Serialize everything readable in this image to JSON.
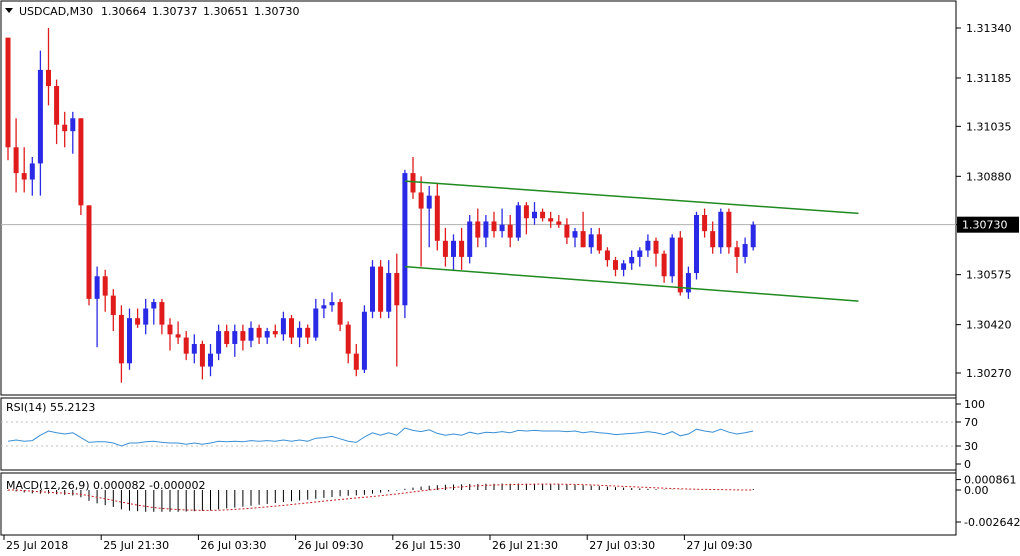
{
  "header": {
    "symbol": "USDCAD,M30",
    "open": "1.30664",
    "high": "1.30737",
    "low": "1.30651",
    "close": "1.30730"
  },
  "colors": {
    "bull": "#2a2ae6",
    "bear": "#e01b1b",
    "channel": "#1f8a1f",
    "rsi": "#3a8fd6",
    "macd_hist": "#000000",
    "macd_signal": "#c8201f",
    "bid_line": "#b0b0b0"
  },
  "chart_data": [
    {
      "type": "candlestick",
      "title": "USDCAD,M30",
      "yticks": [
        "1.31340",
        "1.31185",
        "1.31035",
        "1.30880",
        "1.30730",
        "1.30575",
        "1.30420",
        "1.30270"
      ],
      "ytick_values": [
        1.3134,
        1.31185,
        1.31035,
        1.3088,
        1.3073,
        1.30575,
        1.3042,
        1.3027
      ],
      "ylim": [
        1.3024,
        1.3136
      ],
      "current_price": "1.30730",
      "xticks": [
        "25 Jul 2018",
        "25 Jul 21:30",
        "26 Jul 03:30",
        "26 Jul 09:30",
        "26 Jul 15:30",
        "26 Jul 21:30",
        "27 Jul 03:30",
        "27 Jul 09:30"
      ],
      "xtick_index": [
        0,
        12,
        24,
        36,
        48,
        60,
        72,
        84
      ],
      "candles": [
        [
          1.3131,
          1.3131,
          1.3093,
          1.3097
        ],
        [
          1.3097,
          1.3106,
          1.3083,
          1.3089
        ],
        [
          1.3089,
          1.3097,
          1.3083,
          1.3087
        ],
        [
          1.3087,
          1.3094,
          1.3082,
          1.3092
        ],
        [
          1.3092,
          1.3127,
          1.3082,
          1.3121
        ],
        [
          1.3121,
          1.3134,
          1.311,
          1.3116
        ],
        [
          1.3116,
          1.3118,
          1.3098,
          1.3104
        ],
        [
          1.3104,
          1.3108,
          1.3097,
          1.3102
        ],
        [
          1.3102,
          1.3108,
          1.3095,
          1.3106
        ],
        [
          1.3106,
          1.3106,
          1.3076,
          1.3079
        ],
        [
          1.3079,
          1.3079,
          1.3048,
          1.305
        ],
        [
          1.305,
          1.306,
          1.3035,
          1.3057
        ],
        [
          1.3057,
          1.3059,
          1.3046,
          1.3051
        ],
        [
          1.3051,
          1.3053,
          1.304,
          1.3045
        ],
        [
          1.3045,
          1.3048,
          1.3024,
          1.303
        ],
        [
          1.303,
          1.3047,
          1.3028,
          1.3044
        ],
        [
          1.3044,
          1.3047,
          1.3041,
          1.3042
        ],
        [
          1.3042,
          1.305,
          1.3039,
          1.3047
        ],
        [
          1.3047,
          1.305,
          1.3042,
          1.3049
        ],
        [
          1.3049,
          1.305,
          1.3039,
          1.3042
        ],
        [
          1.3042,
          1.3044,
          1.3034,
          1.3039
        ],
        [
          1.3039,
          1.3043,
          1.3036,
          1.3038
        ],
        [
          1.3038,
          1.304,
          1.3031,
          1.3033
        ],
        [
          1.3033,
          1.3039,
          1.303,
          1.3036
        ],
        [
          1.3036,
          1.3037,
          1.3025,
          1.3029
        ],
        [
          1.3029,
          1.3036,
          1.3026,
          1.3033
        ],
        [
          1.3033,
          1.3042,
          1.3031,
          1.304
        ],
        [
          1.304,
          1.3042,
          1.3035,
          1.3036
        ],
        [
          1.3036,
          1.3042,
          1.3032,
          1.304
        ],
        [
          1.304,
          1.3042,
          1.3034,
          1.3037
        ],
        [
          1.3037,
          1.3043,
          1.3035,
          1.3041
        ],
        [
          1.3041,
          1.3042,
          1.3036,
          1.3038
        ],
        [
          1.3038,
          1.3041,
          1.3036,
          1.304
        ],
        [
          1.304,
          1.3042,
          1.3038,
          1.3039
        ],
        [
          1.3039,
          1.3046,
          1.3037,
          1.3044
        ],
        [
          1.3044,
          1.3045,
          1.3036,
          1.3038
        ],
        [
          1.3038,
          1.3043,
          1.3035,
          1.3041
        ],
        [
          1.3041,
          1.3042,
          1.3036,
          1.3038
        ],
        [
          1.3038,
          1.305,
          1.3037,
          1.3047
        ],
        [
          1.3047,
          1.305,
          1.3044,
          1.3048
        ],
        [
          1.3048,
          1.3052,
          1.3046,
          1.3049
        ],
        [
          1.3049,
          1.305,
          1.304,
          1.3042
        ],
        [
          1.3042,
          1.3043,
          1.303,
          1.3033
        ],
        [
          1.3033,
          1.3036,
          1.3026,
          1.3028
        ],
        [
          1.3028,
          1.3048,
          1.3027,
          1.3046
        ],
        [
          1.3046,
          1.3062,
          1.3044,
          1.306
        ],
        [
          1.306,
          1.3062,
          1.3044,
          1.3046
        ],
        [
          1.3046,
          1.3062,
          1.3044,
          1.3058
        ],
        [
          1.3058,
          1.3064,
          1.3029,
          1.3048
        ],
        [
          1.3048,
          1.309,
          1.3044,
          1.3089
        ],
        [
          1.3089,
          1.3094,
          1.3081,
          1.3083
        ],
        [
          1.3083,
          1.3088,
          1.306,
          1.3078
        ],
        [
          1.3078,
          1.3085,
          1.3066,
          1.3082
        ],
        [
          1.3082,
          1.3086,
          1.3065,
          1.3068
        ],
        [
          1.3068,
          1.3072,
          1.306,
          1.3063
        ],
        [
          1.3063,
          1.307,
          1.3059,
          1.3068
        ],
        [
          1.3068,
          1.3072,
          1.3059,
          1.3063
        ],
        [
          1.3063,
          1.3076,
          1.3061,
          1.3074
        ],
        [
          1.3074,
          1.3078,
          1.3066,
          1.3069
        ],
        [
          1.3069,
          1.3076,
          1.3066,
          1.3074
        ],
        [
          1.3074,
          1.3077,
          1.3069,
          1.3071
        ],
        [
          1.3071,
          1.3078,
          1.3069,
          1.3073
        ],
        [
          1.3073,
          1.3076,
          1.3066,
          1.3069
        ],
        [
          1.3069,
          1.308,
          1.3068,
          1.3079
        ],
        [
          1.3079,
          1.308,
          1.307,
          1.3075
        ],
        [
          1.3075,
          1.308,
          1.3073,
          1.3077
        ],
        [
          1.3077,
          1.3078,
          1.3074,
          1.3075
        ],
        [
          1.3075,
          1.3077,
          1.3072,
          1.3074
        ],
        [
          1.3074,
          1.3076,
          1.3072,
          1.3073
        ],
        [
          1.3073,
          1.3075,
          1.3067,
          1.3069
        ],
        [
          1.3069,
          1.3072,
          1.3066,
          1.3071
        ],
        [
          1.3071,
          1.3077,
          1.3066,
          1.3066
        ],
        [
          1.3066,
          1.3072,
          1.3064,
          1.307
        ],
        [
          1.307,
          1.3072,
          1.3064,
          1.3065
        ],
        [
          1.3065,
          1.3066,
          1.306,
          1.3062
        ],
        [
          1.3062,
          1.3063,
          1.3057,
          1.3059
        ],
        [
          1.3059,
          1.3062,
          1.3057,
          1.3061
        ],
        [
          1.3061,
          1.3065,
          1.3059,
          1.3063
        ],
        [
          1.3063,
          1.3066,
          1.306,
          1.3065
        ],
        [
          1.3065,
          1.307,
          1.3063,
          1.3068
        ],
        [
          1.3068,
          1.3069,
          1.306,
          1.3064
        ],
        [
          1.3064,
          1.3065,
          1.3055,
          1.3057
        ],
        [
          1.3057,
          1.307,
          1.3055,
          1.3069
        ],
        [
          1.3069,
          1.3071,
          1.3051,
          1.3052
        ],
        [
          1.3052,
          1.306,
          1.305,
          1.3058
        ],
        [
          1.3058,
          1.3077,
          1.3056,
          1.3076
        ],
        [
          1.3076,
          1.3078,
          1.3069,
          1.3071
        ],
        [
          1.3071,
          1.3074,
          1.3064,
          1.3066
        ],
        [
          1.3066,
          1.3078,
          1.3064,
          1.3077
        ],
        [
          1.3077,
          1.3078,
          1.3064,
          1.3066
        ],
        [
          1.3066,
          1.3068,
          1.3058,
          1.3063
        ],
        [
          1.3063,
          1.3069,
          1.3061,
          1.3067
        ],
        [
          1.3066,
          1.3074,
          1.3065,
          1.3073
        ]
      ],
      "channel": {
        "upper": [
          [
            49,
            1.30865
          ],
          [
            105,
            1.30765
          ]
        ],
        "lower": [
          [
            49,
            1.306
          ],
          [
            105,
            1.30493
          ]
        ]
      }
    },
    {
      "type": "line",
      "title": "RSI(14) 55.2123",
      "yticks": [
        "100",
        "70",
        "30",
        "0"
      ],
      "ytick_values": [
        100,
        70,
        30,
        0
      ],
      "ylim": [
        0,
        100
      ],
      "series": [
        {
          "name": "RSI(14)",
          "values": [
            38,
            40,
            38,
            39,
            48,
            55,
            52,
            50,
            52,
            44,
            36,
            37,
            37,
            35,
            30,
            35,
            35,
            37,
            38,
            36,
            35,
            35,
            33,
            35,
            33,
            35,
            38,
            37,
            38,
            37,
            39,
            38,
            39,
            38,
            40,
            38,
            40,
            38,
            43,
            44,
            46,
            42,
            38,
            36,
            45,
            52,
            48,
            52,
            48,
            60,
            56,
            54,
            57,
            51,
            48,
            50,
            48,
            53,
            50,
            53,
            52,
            54,
            52,
            56,
            55,
            56,
            55,
            55,
            55,
            54,
            55,
            52,
            54,
            52,
            51,
            49,
            50,
            51,
            52,
            54,
            52,
            49,
            54,
            47,
            50,
            58,
            55,
            53,
            58,
            53,
            50,
            52,
            55
          ]
        }
      ]
    },
    {
      "type": "bar",
      "title": "MACD(12,26,9) 0.000082 -0.000002",
      "yticks": [
        "0.000861",
        "0.00",
        "-0.002642"
      ],
      "ytick_values": [
        0.000861,
        0.0,
        -0.002642
      ],
      "ylim": [
        -0.003,
        0.0011
      ],
      "series": [
        {
          "name": "MACD",
          "values": [
            -5e-05,
            -0.00012,
            -0.0002,
            -0.00028,
            -0.0003,
            -0.0003,
            -0.00035,
            -0.0004,
            -0.00045,
            -0.0006,
            -0.0009,
            -0.0011,
            -0.00125,
            -0.0014,
            -0.0016,
            -0.0017,
            -0.00175,
            -0.0018,
            -0.0018,
            -0.0018,
            -0.0018,
            -0.0018,
            -0.00178,
            -0.00175,
            -0.00172,
            -0.00168,
            -0.0016,
            -0.00152,
            -0.00145,
            -0.00138,
            -0.0013,
            -0.00122,
            -0.00115,
            -0.00108,
            -0.001,
            -0.00093,
            -0.00087,
            -0.0008,
            -0.00072,
            -0.00065,
            -0.00058,
            -0.00052,
            -0.00048,
            -0.00045,
            -0.0004,
            -0.0003,
            -0.00022,
            -0.00012,
            -5e-05,
            0.0001,
            0.0002,
            0.00028,
            0.00035,
            0.0004,
            0.00043,
            0.00045,
            0.00047,
            0.0005,
            0.0005,
            0.00052,
            0.00052,
            0.00053,
            0.00052,
            0.00053,
            0.00052,
            0.00052,
            0.00051,
            0.0005,
            0.00048,
            0.00045,
            0.00043,
            0.0004,
            0.00036,
            0.00032,
            0.00028,
            0.00024,
            0.0002,
            0.00016,
            0.00013,
            0.0001,
            7e-05,
            4e-05,
            3e-05,
            2e-05,
            1e-05,
            1e-05,
            0.0,
            0.0,
            1e-05,
            0.0,
            -1e-05,
            0.0,
            8e-05
          ]
        },
        {
          "name": "Signal",
          "values": [
            0.0,
            0.0,
            -5e-05,
            -0.0001,
            -0.00015,
            -0.00019,
            -0.00023,
            -0.00026,
            -0.0003,
            -0.00036,
            -0.00047,
            -0.0006,
            -0.00073,
            -0.00086,
            -0.001,
            -0.00112,
            -0.00125,
            -0.00135,
            -0.00145,
            -0.00152,
            -0.00157,
            -0.00162,
            -0.00165,
            -0.00167,
            -0.00168,
            -0.00168,
            -0.00167,
            -0.00164,
            -0.0016,
            -0.00156,
            -0.00151,
            -0.00145,
            -0.00139,
            -0.00133,
            -0.00127,
            -0.0012,
            -0.00113,
            -0.00106,
            -0.00099,
            -0.00092,
            -0.00085,
            -0.00079,
            -0.00072,
            -0.00066,
            -0.0006,
            -0.00054,
            -0.00047,
            -0.0004,
            -0.00033,
            -0.00025,
            -0.00016,
            -8e-05,
            0.0,
            8e-05,
            0.00015,
            0.00021,
            0.00026,
            0.00031,
            0.00035,
            0.00038,
            0.00041,
            0.00043,
            0.00045,
            0.00046,
            0.00047,
            0.00048,
            0.00048,
            0.00048,
            0.00048,
            0.00047,
            0.00046,
            0.00044,
            0.00042,
            0.00039,
            0.00036,
            0.00033,
            0.0003,
            0.00027,
            0.00024,
            0.00021,
            0.00018,
            0.00015,
            0.00012,
            0.0001,
            8e-05,
            6e-05,
            5e-05,
            4e-05,
            3e-05,
            2e-05,
            1e-05,
            0.0,
            -2e-06
          ]
        }
      ]
    }
  ]
}
